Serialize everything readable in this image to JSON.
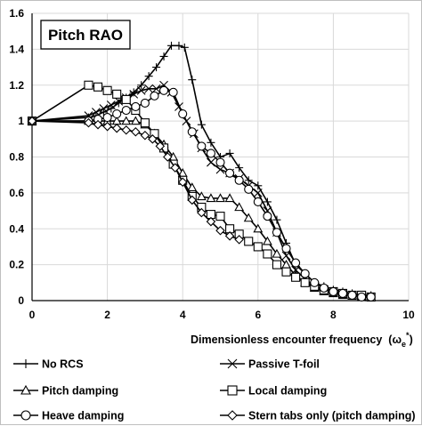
{
  "chart_data": {
    "type": "line",
    "title": "Pitch RAO",
    "xlabel": "Dimensionless encounter frequency",
    "xlabel_symbol_base": "ω",
    "xlabel_symbol_sub": "e",
    "xlabel_symbol_sup": "*",
    "xlim": [
      0,
      10
    ],
    "ylim": [
      0,
      1.6
    ],
    "x_ticks": [
      0,
      2,
      4,
      6,
      8,
      10
    ],
    "y_ticks": [
      0,
      0.2,
      0.4,
      0.6,
      0.8,
      1,
      1.2,
      1.4,
      1.6
    ],
    "x_tick_labels": [
      "0",
      "2",
      "4",
      "6",
      "8",
      "10"
    ],
    "y_tick_labels": [
      "0",
      "0.2",
      "0.4",
      "0.6",
      "0.8",
      "1",
      "1.2",
      "1.4",
      "1.6"
    ],
    "grid": true,
    "legend_position": "bottom",
    "series": [
      {
        "name": "No RCS",
        "marker": "plus",
        "points": [
          [
            0,
            1
          ],
          [
            1.5,
            1.02
          ],
          [
            1.7,
            1.03
          ],
          [
            1.9,
            1.05
          ],
          [
            2.1,
            1.07
          ],
          [
            2.3,
            1.1
          ],
          [
            2.5,
            1.13
          ],
          [
            2.7,
            1.16
          ],
          [
            2.9,
            1.2
          ],
          [
            3.1,
            1.25
          ],
          [
            3.3,
            1.3
          ],
          [
            3.5,
            1.36
          ],
          [
            3.7,
            1.42
          ],
          [
            3.9,
            1.42
          ],
          [
            4.05,
            1.41
          ],
          [
            4.25,
            1.23
          ],
          [
            4.5,
            0.98
          ],
          [
            4.75,
            0.88
          ],
          [
            5.0,
            0.8
          ],
          [
            5.25,
            0.82
          ],
          [
            5.5,
            0.74
          ],
          [
            5.75,
            0.67
          ],
          [
            6.0,
            0.64
          ],
          [
            6.25,
            0.55
          ],
          [
            6.5,
            0.45
          ],
          [
            6.75,
            0.32
          ],
          [
            7.0,
            0.2
          ],
          [
            7.25,
            0.15
          ],
          [
            7.5,
            0.1
          ],
          [
            7.75,
            0.08
          ],
          [
            8.0,
            0.06
          ],
          [
            8.25,
            0.05
          ],
          [
            8.5,
            0.04
          ],
          [
            8.75,
            0.03
          ],
          [
            9.0,
            0.03
          ]
        ]
      },
      {
        "name": "Passive T-foil",
        "marker": "x",
        "points": [
          [
            0,
            1
          ],
          [
            1.5,
            1.03
          ],
          [
            1.7,
            1.05
          ],
          [
            1.9,
            1.07
          ],
          [
            2.1,
            1.09
          ],
          [
            2.3,
            1.11
          ],
          [
            2.5,
            1.13
          ],
          [
            2.7,
            1.15
          ],
          [
            2.9,
            1.17
          ],
          [
            3.1,
            1.18
          ],
          [
            3.3,
            1.18
          ],
          [
            3.5,
            1.2
          ],
          [
            3.7,
            1.16
          ],
          [
            3.9,
            1.08
          ],
          [
            4.1,
            1.0
          ],
          [
            4.3,
            0.93
          ],
          [
            4.5,
            0.85
          ],
          [
            4.75,
            0.77
          ],
          [
            5.0,
            0.73
          ],
          [
            5.25,
            0.71
          ],
          [
            5.5,
            0.68
          ],
          [
            5.75,
            0.64
          ],
          [
            6.0,
            0.6
          ],
          [
            6.25,
            0.5
          ],
          [
            6.5,
            0.38
          ],
          [
            6.75,
            0.25
          ],
          [
            7.0,
            0.17
          ],
          [
            7.25,
            0.12
          ],
          [
            7.5,
            0.08
          ],
          [
            7.75,
            0.06
          ],
          [
            8.0,
            0.05
          ],
          [
            8.25,
            0.04
          ],
          [
            8.5,
            0.03
          ],
          [
            8.75,
            0.02
          ],
          [
            9.0,
            0.02
          ]
        ]
      },
      {
        "name": "Pitch damping",
        "marker": "triangle",
        "points": [
          [
            0,
            1
          ],
          [
            1.5,
            1.0
          ],
          [
            1.75,
            1.0
          ],
          [
            2.0,
            1.0
          ],
          [
            2.25,
            1.0
          ],
          [
            2.5,
            1.0
          ],
          [
            2.75,
            1.0
          ],
          [
            3.0,
            0.98
          ],
          [
            3.25,
            0.93
          ],
          [
            3.5,
            0.87
          ],
          [
            3.75,
            0.8
          ],
          [
            4.0,
            0.71
          ],
          [
            4.25,
            0.63
          ],
          [
            4.5,
            0.58
          ],
          [
            4.75,
            0.57
          ],
          [
            5.0,
            0.57
          ],
          [
            5.25,
            0.57
          ],
          [
            5.5,
            0.52
          ],
          [
            5.75,
            0.46
          ],
          [
            6.0,
            0.4
          ],
          [
            6.25,
            0.33
          ],
          [
            6.5,
            0.26
          ],
          [
            6.75,
            0.2
          ],
          [
            7.0,
            0.14
          ],
          [
            7.25,
            0.1
          ],
          [
            7.5,
            0.07
          ],
          [
            7.75,
            0.05
          ],
          [
            8.0,
            0.04
          ],
          [
            8.25,
            0.03
          ],
          [
            8.5,
            0.03
          ],
          [
            8.75,
            0.02
          ],
          [
            9.0,
            0.02
          ]
        ]
      },
      {
        "name": "Local damping",
        "marker": "square",
        "points": [
          [
            0,
            1
          ],
          [
            1.5,
            1.2
          ],
          [
            1.75,
            1.19
          ],
          [
            2.0,
            1.17
          ],
          [
            2.25,
            1.15
          ],
          [
            2.5,
            1.12
          ],
          [
            2.75,
            1.06
          ],
          [
            3.0,
            0.99
          ],
          [
            3.25,
            0.93
          ],
          [
            3.5,
            0.85
          ],
          [
            3.75,
            0.76
          ],
          [
            4.0,
            0.67
          ],
          [
            4.25,
            0.58
          ],
          [
            4.5,
            0.52
          ],
          [
            4.75,
            0.48
          ],
          [
            5.0,
            0.47
          ],
          [
            5.25,
            0.4
          ],
          [
            5.5,
            0.37
          ],
          [
            5.75,
            0.33
          ],
          [
            6.0,
            0.3
          ],
          [
            6.25,
            0.26
          ],
          [
            6.5,
            0.2
          ],
          [
            6.75,
            0.16
          ],
          [
            7.0,
            0.13
          ],
          [
            7.25,
            0.1
          ],
          [
            7.5,
            0.08
          ],
          [
            7.75,
            0.06
          ],
          [
            8.0,
            0.05
          ],
          [
            8.25,
            0.04
          ],
          [
            8.5,
            0.03
          ],
          [
            8.75,
            0.03
          ],
          [
            9.0,
            0.02
          ]
        ]
      },
      {
        "name": "Heave damping",
        "marker": "circle",
        "points": [
          [
            0,
            1
          ],
          [
            1.5,
            1.0
          ],
          [
            1.75,
            1.01
          ],
          [
            2.0,
            1.02
          ],
          [
            2.25,
            1.04
          ],
          [
            2.5,
            1.06
          ],
          [
            2.75,
            1.08
          ],
          [
            3.0,
            1.1
          ],
          [
            3.25,
            1.14
          ],
          [
            3.5,
            1.17
          ],
          [
            3.75,
            1.16
          ],
          [
            4.0,
            1.04
          ],
          [
            4.25,
            0.94
          ],
          [
            4.5,
            0.86
          ],
          [
            4.75,
            0.82
          ],
          [
            5.0,
            0.77
          ],
          [
            5.25,
            0.71
          ],
          [
            5.5,
            0.67
          ],
          [
            5.75,
            0.62
          ],
          [
            6.0,
            0.55
          ],
          [
            6.25,
            0.47
          ],
          [
            6.5,
            0.38
          ],
          [
            6.75,
            0.29
          ],
          [
            7.0,
            0.21
          ],
          [
            7.25,
            0.15
          ],
          [
            7.5,
            0.1
          ],
          [
            7.75,
            0.07
          ],
          [
            8.0,
            0.05
          ],
          [
            8.25,
            0.04
          ],
          [
            8.5,
            0.03
          ],
          [
            8.75,
            0.02
          ],
          [
            9.0,
            0.02
          ]
        ]
      },
      {
        "name": "Stern tabs only (pitch damping)",
        "marker": "diamond",
        "points": [
          [
            0,
            1
          ],
          [
            1.5,
            0.99
          ],
          [
            1.75,
            0.98
          ],
          [
            2.0,
            0.97
          ],
          [
            2.25,
            0.96
          ],
          [
            2.5,
            0.95
          ],
          [
            2.75,
            0.94
          ],
          [
            3.0,
            0.92
          ],
          [
            3.2,
            0.9
          ],
          [
            3.4,
            0.86
          ],
          [
            3.6,
            0.8
          ],
          [
            3.8,
            0.74
          ],
          [
            4.0,
            0.66
          ],
          [
            4.25,
            0.56
          ],
          [
            4.5,
            0.49
          ],
          [
            4.75,
            0.44
          ],
          [
            5.0,
            0.39
          ],
          [
            5.25,
            0.36
          ],
          [
            5.5,
            0.34
          ]
        ]
      }
    ]
  }
}
